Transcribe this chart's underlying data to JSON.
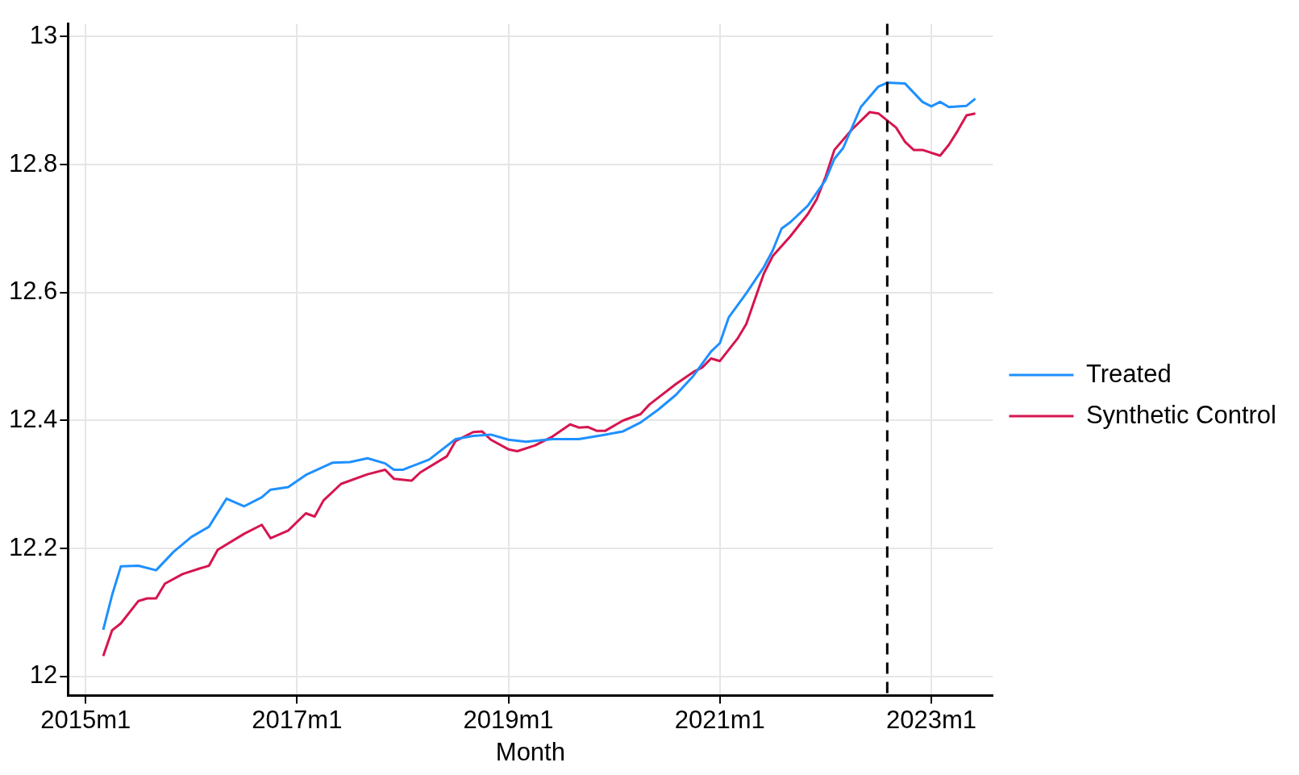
{
  "chart_data": {
    "type": "line",
    "xlabel": "Month",
    "xlim": [
      "2014-11",
      "2023-08"
    ],
    "ylim": [
      11.97,
      13.02
    ],
    "xticks": [
      {
        "value": "2015-01",
        "label": "2015m1"
      },
      {
        "value": "2017-01",
        "label": "2017m1"
      },
      {
        "value": "2019-01",
        "label": "2019m1"
      },
      {
        "value": "2021-01",
        "label": "2021m1"
      },
      {
        "value": "2023-01",
        "label": "2023m1"
      }
    ],
    "yticks": [
      12,
      12.2,
      12.4,
      12.6,
      12.8,
      13
    ],
    "grid": true,
    "legend": "right",
    "marker": "none",
    "line_style": "solid",
    "ref_lines": [
      {
        "axis": "x",
        "value": "2022-08",
        "color": "#000000",
        "line_style": "dashed"
      }
    ],
    "series": [
      {
        "name": "Treated",
        "color": "#1e90ff",
        "x": [
          "2015-03",
          "2015-04",
          "2015-05",
          "2015-07",
          "2015-09",
          "2015-11",
          "2016-01",
          "2016-03",
          "2016-05",
          "2016-07",
          "2016-09",
          "2016-10",
          "2016-12",
          "2017-02",
          "2017-05",
          "2017-07",
          "2017-09",
          "2017-11",
          "2017-12",
          "2018-01",
          "2018-04",
          "2018-07",
          "2018-09",
          "2018-11",
          "2019-01",
          "2019-03",
          "2019-06",
          "2019-09",
          "2019-12",
          "2020-02",
          "2020-04",
          "2020-06",
          "2020-08",
          "2020-10",
          "2020-12",
          "2021-01",
          "2021-02",
          "2021-04",
          "2021-06",
          "2021-07",
          "2021-08",
          "2021-09",
          "2021-11",
          "2022-01",
          "2022-02",
          "2022-03",
          "2022-05",
          "2022-07",
          "2022-08",
          "2022-10",
          "2022-12",
          "2023-01",
          "2023-02",
          "2023-03",
          "2023-05",
          "2023-06"
        ],
        "values": [
          12.073,
          12.127,
          12.172,
          12.173,
          12.166,
          12.195,
          12.218,
          12.234,
          12.278,
          12.266,
          12.28,
          12.292,
          12.296,
          12.315,
          12.334,
          12.335,
          12.341,
          12.333,
          12.323,
          12.323,
          12.339,
          12.371,
          12.376,
          12.378,
          12.37,
          12.367,
          12.371,
          12.371,
          12.378,
          12.383,
          12.397,
          12.417,
          12.44,
          12.47,
          12.508,
          12.521,
          12.561,
          12.599,
          12.64,
          12.666,
          12.7,
          12.71,
          12.736,
          12.776,
          12.809,
          12.826,
          12.89,
          12.922,
          12.928,
          12.927,
          12.898,
          12.891,
          12.898,
          12.89,
          12.892,
          12.903
        ]
      },
      {
        "name": "Synthetic Control",
        "color": "#d6154f",
        "x": [
          "2015-03",
          "2015-04",
          "2015-05",
          "2015-07",
          "2015-08",
          "2015-09",
          "2015-10",
          "2015-12",
          "2016-02",
          "2016-03",
          "2016-04",
          "2016-07",
          "2016-09",
          "2016-10",
          "2016-12",
          "2017-02",
          "2017-03",
          "2017-04",
          "2017-06",
          "2017-09",
          "2017-11",
          "2017-12",
          "2018-02",
          "2018-03",
          "2018-06",
          "2018-07",
          "2018-09",
          "2018-10",
          "2018-11",
          "2019-01",
          "2019-02",
          "2019-04",
          "2019-06",
          "2019-08",
          "2019-09",
          "2019-10",
          "2019-11",
          "2019-12",
          "2020-02",
          "2020-04",
          "2020-05",
          "2020-08",
          "2020-10",
          "2020-11",
          "2020-12",
          "2021-01",
          "2021-03",
          "2021-04",
          "2021-06",
          "2021-07",
          "2021-09",
          "2021-11",
          "2021-12",
          "2022-01",
          "2022-02",
          "2022-04",
          "2022-06",
          "2022-07",
          "2022-09",
          "2022-10",
          "2022-11",
          "2022-12",
          "2023-02",
          "2023-03",
          "2023-04",
          "2023-05",
          "2023-06"
        ],
        "values": [
          12.032,
          12.072,
          12.083,
          12.118,
          12.122,
          12.122,
          12.145,
          12.16,
          12.169,
          12.173,
          12.198,
          12.223,
          12.237,
          12.216,
          12.228,
          12.255,
          12.25,
          12.275,
          12.301,
          12.316,
          12.323,
          12.309,
          12.306,
          12.319,
          12.344,
          12.368,
          12.382,
          12.383,
          12.37,
          12.355,
          12.352,
          12.361,
          12.375,
          12.394,
          12.389,
          12.39,
          12.384,
          12.384,
          12.4,
          12.41,
          12.425,
          12.457,
          12.476,
          12.483,
          12.497,
          12.493,
          12.528,
          12.551,
          12.63,
          12.657,
          12.688,
          12.723,
          12.746,
          12.781,
          12.823,
          12.855,
          12.882,
          12.88,
          12.858,
          12.836,
          12.823,
          12.823,
          12.814,
          12.831,
          12.853,
          12.877,
          12.88
        ]
      }
    ]
  }
}
